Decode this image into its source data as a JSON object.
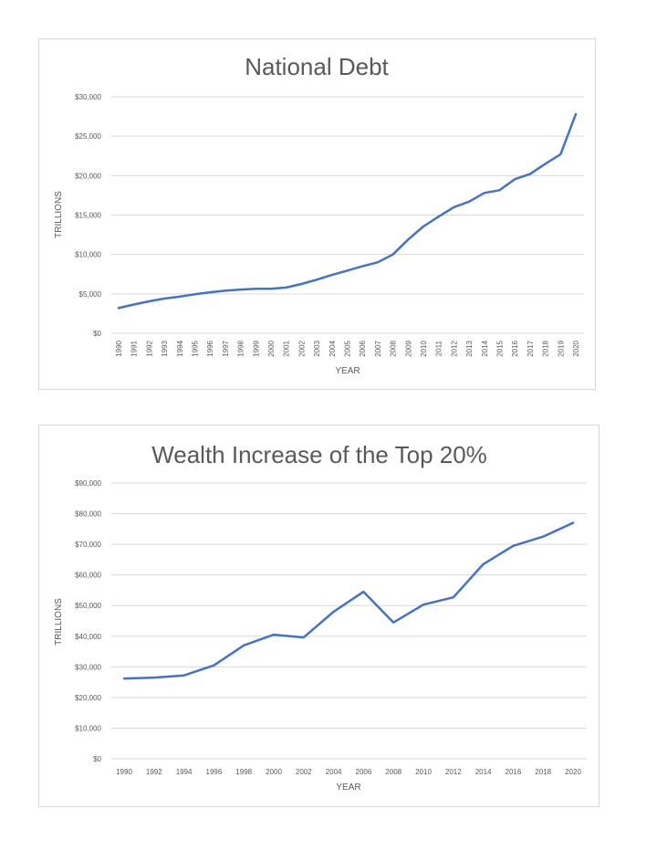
{
  "chart_data": [
    {
      "type": "line",
      "title": "National Debt",
      "xlabel": "YEAR",
      "ylabel": "TRILLIONS",
      "ylim": [
        0,
        30000
      ],
      "yticks": [
        "$0",
        "$5,000",
        "$10,000",
        "$15,000",
        "$20,000",
        "$25,000",
        "$30,000"
      ],
      "ytick_values": [
        0,
        5000,
        10000,
        15000,
        20000,
        25000,
        30000
      ],
      "grid": true,
      "x_label_rotation": "vertical",
      "x": [
        "1990",
        "1991",
        "1992",
        "1993",
        "1994",
        "1995",
        "1996",
        "1997",
        "1998",
        "1999",
        "2000",
        "2001",
        "2002",
        "2003",
        "2004",
        "2005",
        "2006",
        "2007",
        "2008",
        "2009",
        "2010",
        "2011",
        "2012",
        "2013",
        "2014",
        "2015",
        "2016",
        "2017",
        "2018",
        "2019",
        "2020"
      ],
      "series": [
        {
          "values": [
            3200,
            3650,
            4050,
            4400,
            4650,
            4950,
            5200,
            5400,
            5550,
            5650,
            5650,
            5800,
            6250,
            6800,
            7400,
            7950,
            8500,
            9000,
            10000,
            11900,
            13550,
            14800,
            16000,
            16700,
            17800,
            18150,
            19550,
            20200,
            21500,
            22700,
            27800
          ]
        }
      ]
    },
    {
      "type": "line",
      "title": "Wealth Increase of the Top 20%",
      "xlabel": "YEAR",
      "ylabel": "TRILLIONS",
      "ylim": [
        0,
        90000
      ],
      "yticks": [
        "$0",
        "$10,000",
        "$20,000",
        "$30,000",
        "$40,000",
        "$50,000",
        "$60,000",
        "$70,000",
        "$80,000",
        "$90,000"
      ],
      "ytick_values": [
        0,
        10000,
        20000,
        30000,
        40000,
        50000,
        60000,
        70000,
        80000,
        90000
      ],
      "grid": true,
      "x_label_rotation": "horizontal",
      "x": [
        "1990",
        "1992",
        "1994",
        "1996",
        "1998",
        "2000",
        "2002",
        "2004",
        "2006",
        "2008",
        "2010",
        "2012",
        "2014",
        "2016",
        "2018",
        "2020"
      ],
      "series": [
        {
          "values": [
            26200,
            26500,
            27200,
            30500,
            37000,
            40500,
            39600,
            48000,
            54500,
            44500,
            50300,
            52700,
            63500,
            69500,
            72500,
            77000
          ]
        }
      ]
    }
  ]
}
